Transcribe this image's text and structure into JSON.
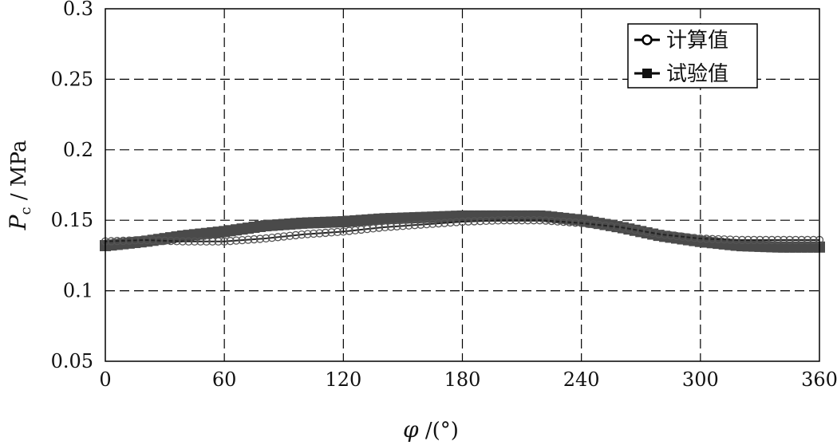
{
  "chart_data": {
    "type": "line",
    "xlabel_symbol": "φ",
    "xlabel_unit": " /(°)",
    "ylabel_symbol": "P",
    "ylabel_sub": "c",
    "ylabel_unit": " / MPa",
    "xlim": [
      0,
      360
    ],
    "ylim": [
      0.05,
      0.3
    ],
    "xticks": [
      "0",
      "60",
      "120",
      "180",
      "240",
      "300",
      "360"
    ],
    "yticks": [
      "0.05",
      "0.1",
      "0.15",
      "0.2",
      "0.25",
      "0.3"
    ],
    "grid": true,
    "legend_position": "top-right",
    "series": [
      {
        "name": "计算值",
        "marker": "circle",
        "color": "#222222",
        "x": [
          0,
          20,
          40,
          60,
          80,
          100,
          120,
          140,
          160,
          180,
          200,
          220,
          240,
          260,
          280,
          300,
          320,
          340,
          360
        ],
        "y": [
          0.135,
          0.136,
          0.135,
          0.135,
          0.137,
          0.14,
          0.142,
          0.145,
          0.147,
          0.149,
          0.15,
          0.15,
          0.148,
          0.145,
          0.14,
          0.137,
          0.136,
          0.136,
          0.136
        ]
      },
      {
        "name": "试验值",
        "marker": "square",
        "color": "#4a4a4a",
        "x": [
          0,
          20,
          40,
          60,
          80,
          100,
          120,
          140,
          160,
          180,
          200,
          220,
          240,
          260,
          280,
          300,
          320,
          340,
          360
        ],
        "y": [
          0.132,
          0.135,
          0.139,
          0.142,
          0.146,
          0.148,
          0.149,
          0.151,
          0.152,
          0.153,
          0.153,
          0.153,
          0.15,
          0.145,
          0.139,
          0.135,
          0.132,
          0.131,
          0.131
        ]
      }
    ]
  }
}
